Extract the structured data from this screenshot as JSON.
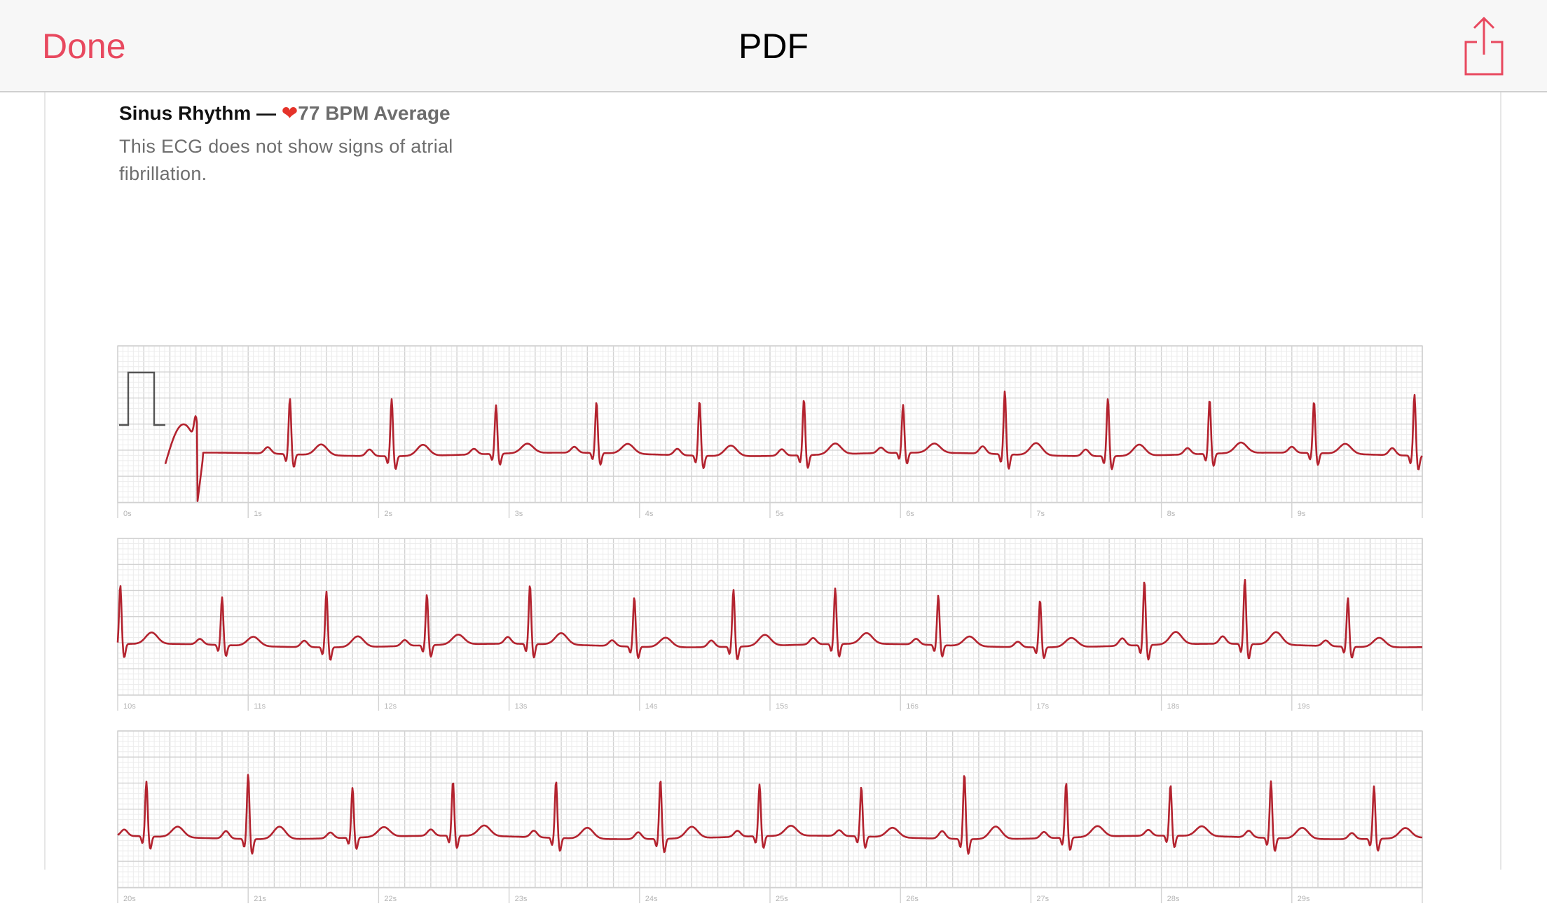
{
  "nav": {
    "done_label": "Done",
    "title": "PDF",
    "share_icon": "share-icon"
  },
  "summary": {
    "rhythm": "Sinus Rhythm —",
    "heart_icon": "heart-icon",
    "bpm": "77 BPM Average",
    "description": "This ECG does not show signs of atrial fibrillation."
  },
  "colors": {
    "accent": "#e8495f",
    "trace": "#b3232f",
    "grid_minor": "#ececec",
    "grid_major": "#d2d2d2"
  },
  "strips": [
    {
      "labels": [
        "0s",
        "1s",
        "2s",
        "3s",
        "4s",
        "5s",
        "6s",
        "7s",
        "8s",
        "9s"
      ]
    },
    {
      "labels": [
        "10s",
        "11s",
        "12s",
        "13s",
        "14s",
        "15s",
        "16s",
        "17s",
        "18s",
        "19s"
      ]
    },
    {
      "labels": [
        "20s",
        "21s",
        "22s",
        "23s",
        "24s",
        "25s",
        "26s",
        "27s",
        "28s",
        "29s"
      ]
    }
  ]
}
